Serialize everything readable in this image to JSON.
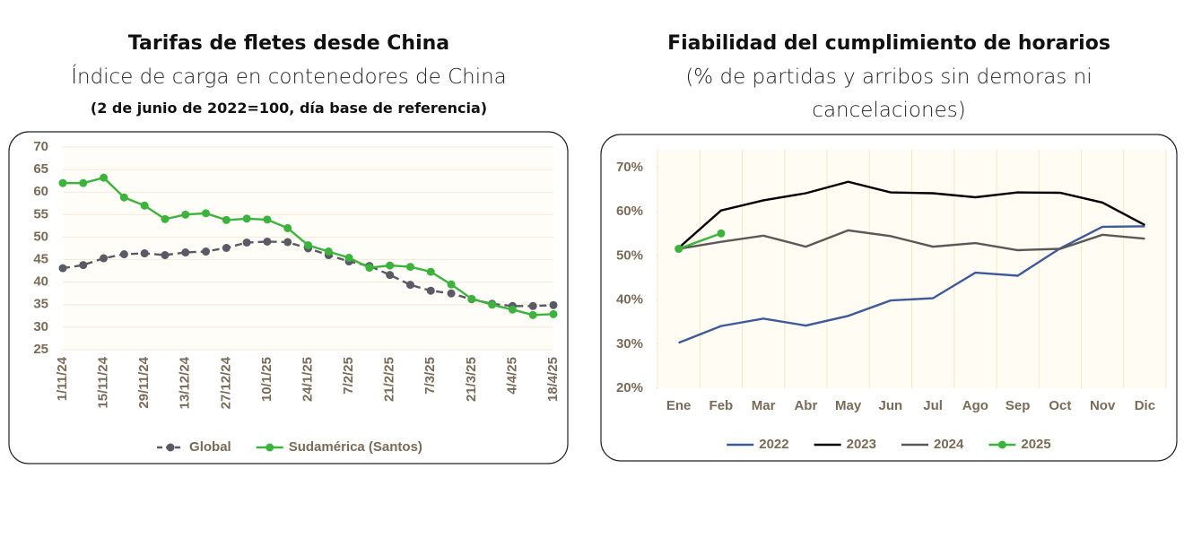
{
  "chart_data": [
    {
      "type": "line",
      "title": "Tarifas de fletes desde China",
      "subtitle": "Índice de carga en contenedores de China",
      "note": "(2 de junio de 2022=100, día base de referencia)",
      "categories": [
        "1/11/24",
        null,
        "15/11/24",
        null,
        "29/11/24",
        null,
        "13/12/24",
        null,
        "27/12/24",
        null,
        "10/1/25",
        null,
        "24/1/25",
        null,
        "7/2/25",
        null,
        "21/2/25",
        null,
        "7/3/25",
        null,
        "21/3/25",
        null,
        "4/4/25",
        null,
        "18/4/25"
      ],
      "ylim": [
        25,
        70
      ],
      "yticks": [
        25,
        30,
        35,
        40,
        45,
        50,
        55,
        60,
        65,
        70
      ],
      "grid": true,
      "legend": "bottom",
      "series": [
        {
          "name": "Global",
          "color": "#5a5a66",
          "dashed": true,
          "markers": true,
          "values": [
            43.1,
            43.8,
            45.3,
            46.2,
            46.4,
            46.0,
            46.6,
            46.8,
            47.6,
            48.8,
            49.0,
            48.9,
            47.5,
            46.0,
            44.6,
            43.6,
            41.6,
            39.4,
            38.1,
            37.5,
            36.2,
            35.2,
            34.7,
            34.7,
            34.9
          ]
        },
        {
          "name": "Sudamérica (Santos)",
          "color": "#3cb33c",
          "dashed": false,
          "markers": true,
          "values": [
            62.0,
            62.0,
            63.2,
            58.8,
            57.0,
            54.0,
            55.0,
            55.3,
            53.8,
            54.1,
            53.9,
            52.0,
            48.2,
            46.8,
            45.4,
            43.2,
            43.7,
            43.4,
            42.3,
            39.5,
            36.3,
            35.0,
            33.9,
            32.7,
            32.9
          ]
        }
      ]
    },
    {
      "type": "line",
      "title": "Fiabilidad del cumplimiento de horarios",
      "subtitle": "(% de partidas y arribos sin demoras ni cancelaciones)",
      "categories": [
        "Ene",
        "Feb",
        "Mar",
        "Abr",
        "May",
        "Jun",
        "Jul",
        "Ago",
        "Sep",
        "Oct",
        "Nov",
        "Dic"
      ],
      "ylim": [
        20,
        70
      ],
      "yticks": [
        {
          "value": 20,
          "label": "20%"
        },
        {
          "value": 30,
          "label": "30%"
        },
        {
          "value": 40,
          "label": "40%"
        },
        {
          "value": 50,
          "label": "50%"
        },
        {
          "value": 60,
          "label": "60%"
        },
        {
          "value": 70,
          "label": "70%"
        }
      ],
      "grid": true,
      "legend": "bottom",
      "series": [
        {
          "name": "2022",
          "color": "#3f5a9a",
          "dashed": false,
          "markers": false,
          "values": [
            30.3,
            34.1,
            35.8,
            34.2,
            36.4,
            39.9,
            40.4,
            46.2,
            45.5,
            51.7,
            56.6,
            56.7
          ]
        },
        {
          "name": "2023",
          "color": "#000000",
          "dashed": false,
          "markers": false,
          "values": [
            51.8,
            60.3,
            62.6,
            64.2,
            66.8,
            64.4,
            64.2,
            63.3,
            64.4,
            64.3,
            62.1,
            57.0
          ]
        },
        {
          "name": "2024",
          "color": "#595959",
          "dashed": false,
          "markers": false,
          "values": [
            51.6,
            53.2,
            54.6,
            52.1,
            55.8,
            54.5,
            52.1,
            52.9,
            51.3,
            51.6,
            54.8,
            53.9
          ]
        },
        {
          "name": "2025",
          "color": "#3cb33c",
          "dashed": false,
          "markers": true,
          "values": [
            51.6,
            55.1,
            null,
            null,
            null,
            null,
            null,
            null,
            null,
            null,
            null,
            null
          ]
        }
      ]
    }
  ]
}
